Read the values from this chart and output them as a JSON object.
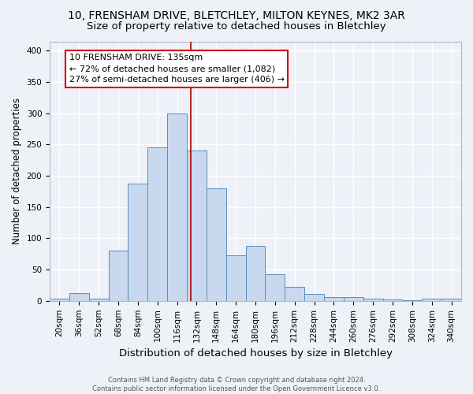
{
  "title": "10, FRENSHAM DRIVE, BLETCHLEY, MILTON KEYNES, MK2 3AR",
  "subtitle": "Size of property relative to detached houses in Bletchley",
  "xlabel": "Distribution of detached houses by size in Bletchley",
  "ylabel": "Number of detached properties",
  "bin_labels": [
    "20sqm",
    "36sqm",
    "52sqm",
    "68sqm",
    "84sqm",
    "100sqm",
    "116sqm",
    "132sqm",
    "148sqm",
    "164sqm",
    "180sqm",
    "196sqm",
    "212sqm",
    "228sqm",
    "244sqm",
    "260sqm",
    "276sqm",
    "292sqm",
    "308sqm",
    "324sqm",
    "340sqm"
  ],
  "bin_edges": [
    20,
    36,
    52,
    68,
    84,
    100,
    116,
    132,
    148,
    164,
    180,
    196,
    212,
    228,
    244,
    260,
    276,
    292,
    308,
    324,
    340
  ],
  "bar_heights": [
    3,
    13,
    3,
    80,
    187,
    245,
    300,
    240,
    180,
    73,
    88,
    42,
    22,
    11,
    6,
    6,
    3,
    2,
    1,
    3,
    3
  ],
  "bar_color": "#c8d9ef",
  "bar_edge_color": "#5b8db8",
  "property_size": 135,
  "vline_color": "#aa0000",
  "annotation_line1": "10 FRENSHAM DRIVE: 135sqm",
  "annotation_line2": "← 72% of detached houses are smaller (1,082)",
  "annotation_line3": "27% of semi-detached houses are larger (406) →",
  "annotation_box_color": "white",
  "annotation_box_edge_color": "#cc0000",
  "background_color": "#eef2f8",
  "plot_background_color": "#eef2f8",
  "grid_color": "white",
  "ylim": [
    0,
    415
  ],
  "yticks": [
    0,
    50,
    100,
    150,
    200,
    250,
    300,
    350,
    400
  ],
  "footer_text": "Contains HM Land Registry data © Crown copyright and database right 2024.\nContains public sector information licensed under the Open Government Licence v3.0.",
  "title_fontsize": 10,
  "subtitle_fontsize": 9.5,
  "xlabel_fontsize": 9.5,
  "ylabel_fontsize": 8.5,
  "tick_fontsize": 7.5,
  "annotation_fontsize": 8,
  "footer_fontsize": 6
}
